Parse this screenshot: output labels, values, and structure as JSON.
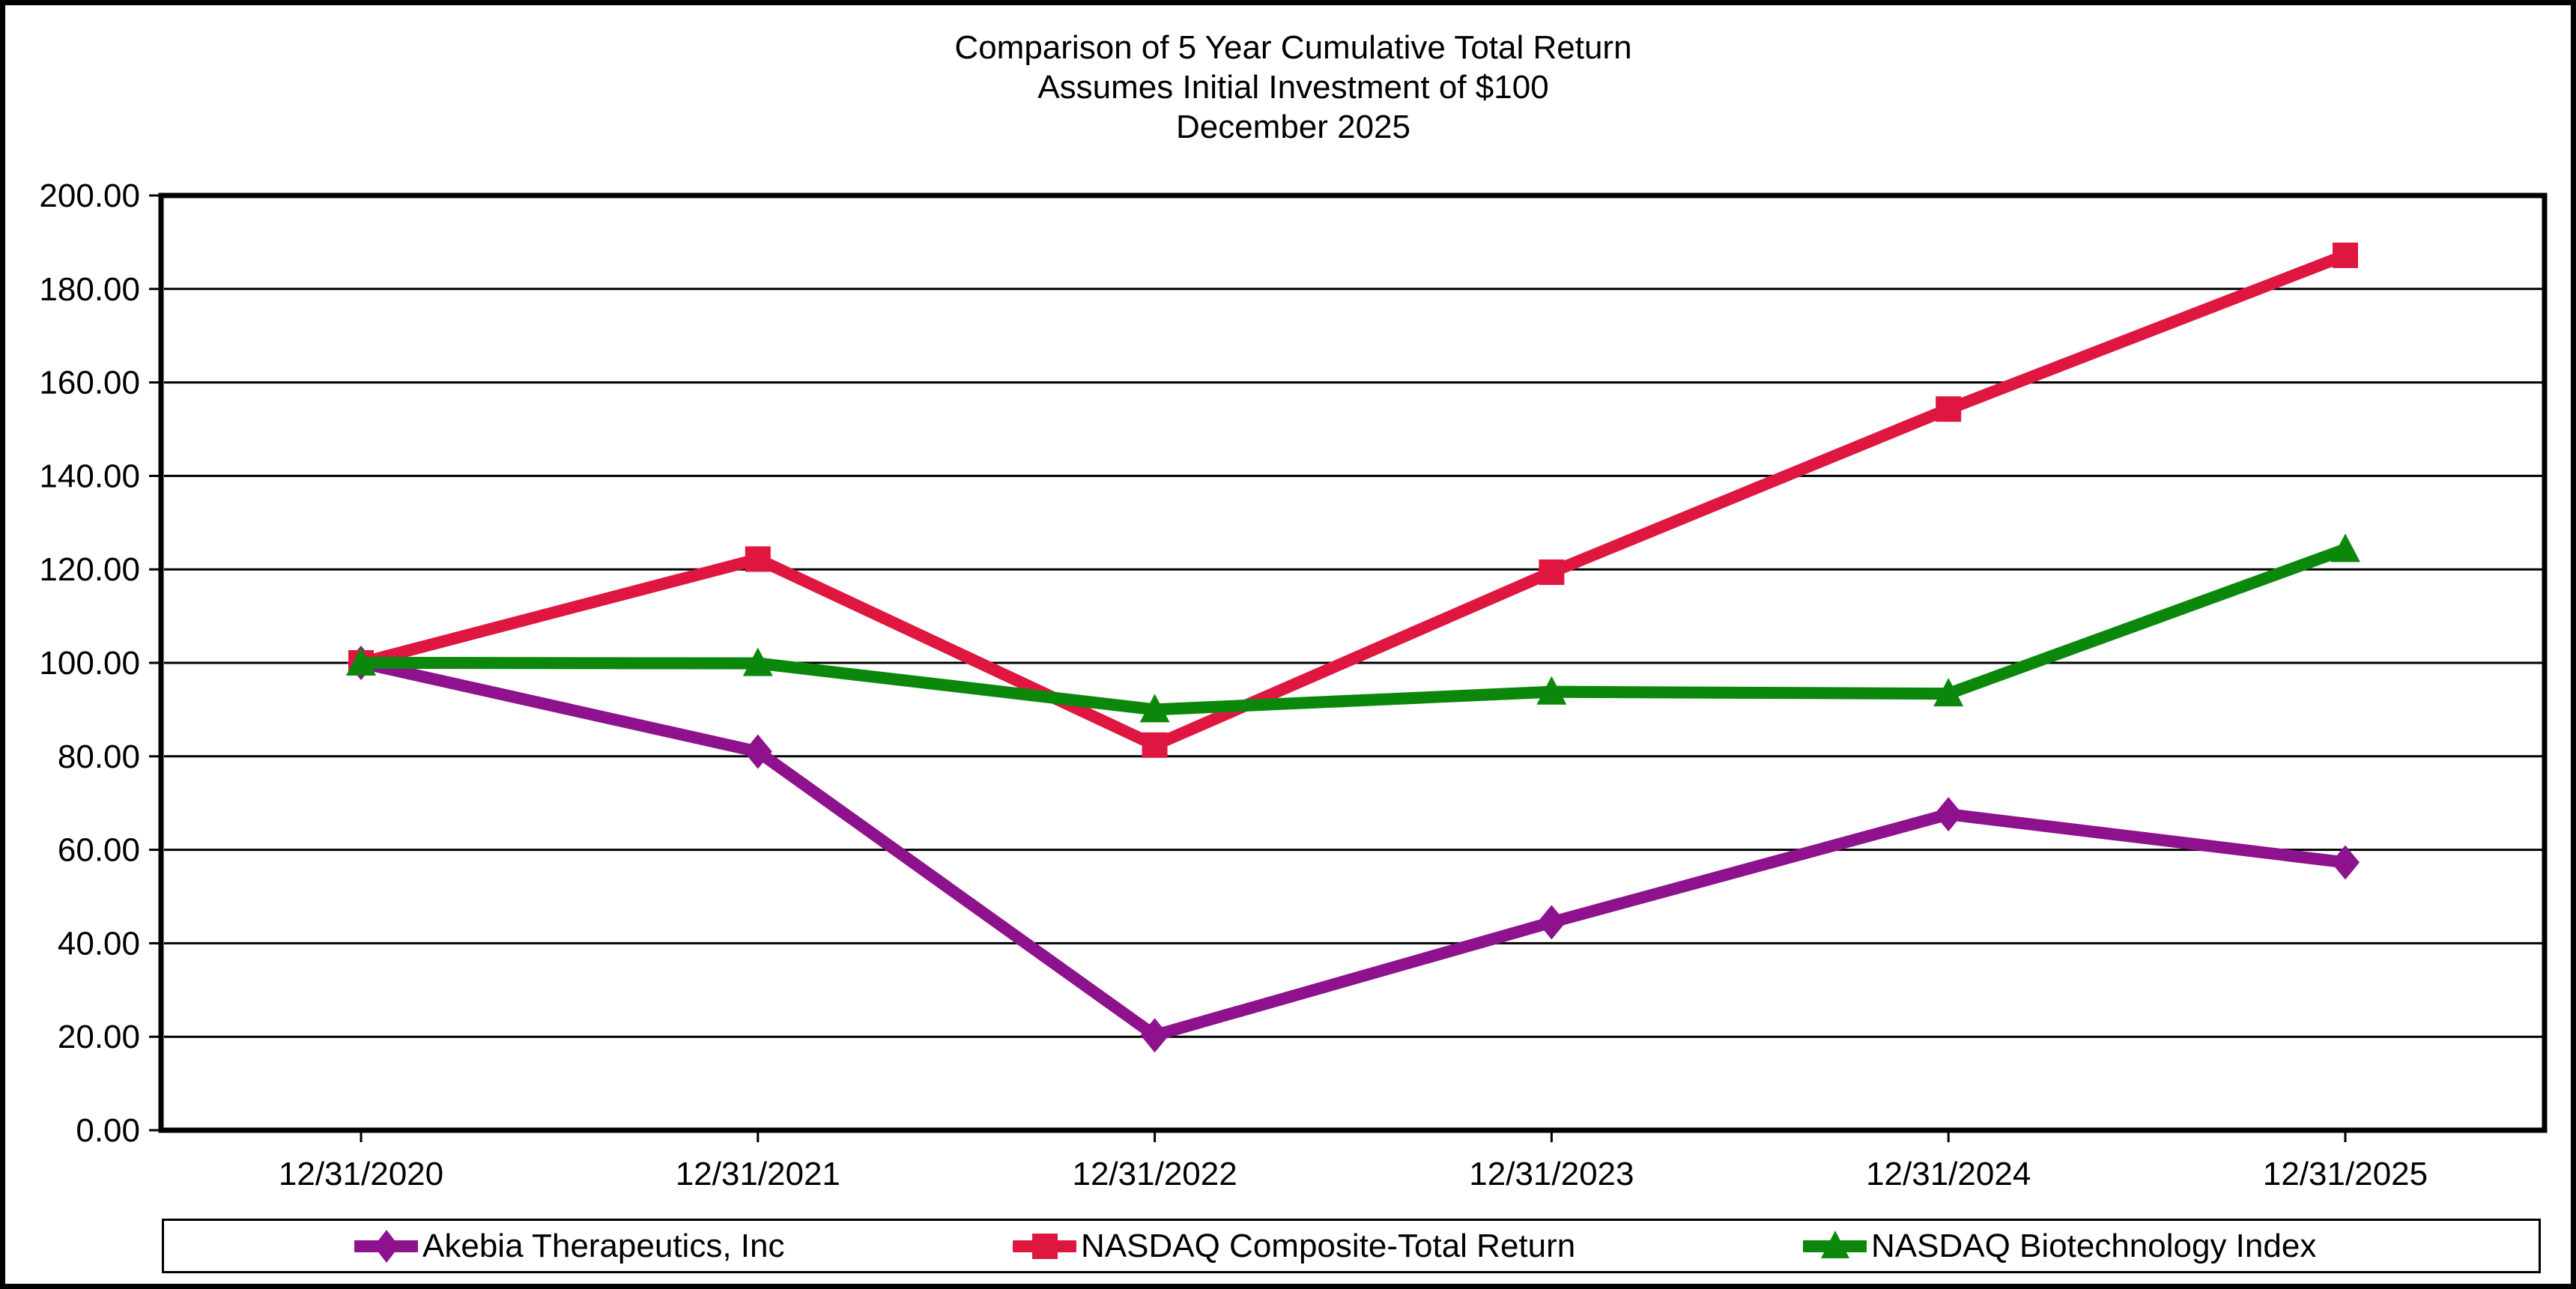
{
  "figure": {
    "title_lines": [
      "Comparison of 5 Year Cumulative Total Return",
      "Assumes Initial Investment of $100",
      "December 2025"
    ]
  },
  "chart_data": {
    "type": "line",
    "title": "Comparison of 5 Year Cumulative Total Return",
    "subtitle": "Assumes Initial Investment of $100",
    "period_label": "December 2025",
    "categories": [
      "12/31/2020",
      "12/31/2021",
      "12/31/2022",
      "12/31/2023",
      "12/31/2024",
      "12/31/2025"
    ],
    "series": [
      {
        "name": "Akebia Therapeutics, Inc",
        "color": "#8E128E",
        "marker": "diamond",
        "values": [
          100.0,
          81.0,
          20.3,
          44.5,
          67.6,
          57.3
        ]
      },
      {
        "name": "NASDAQ Composite-Total Return",
        "color": "#DF1740",
        "marker": "square",
        "values": [
          100.0,
          122.2,
          82.4,
          119.4,
          154.3,
          187.2
        ]
      },
      {
        "name": "NASDAQ Biotechnology Index",
        "color": "#0B870B",
        "marker": "triangle",
        "values": [
          100.0,
          99.9,
          90.0,
          93.8,
          93.4,
          124.3
        ]
      }
    ],
    "ylabel": "",
    "xlabel": "",
    "ylim": [
      0,
      200
    ],
    "ytick_step": 20,
    "ytick_format_decimals": 2,
    "grid": true,
    "gridline_color": "#000000",
    "axis_color": "#000000",
    "text_color": "#000000",
    "legend_position": "bottom"
  }
}
